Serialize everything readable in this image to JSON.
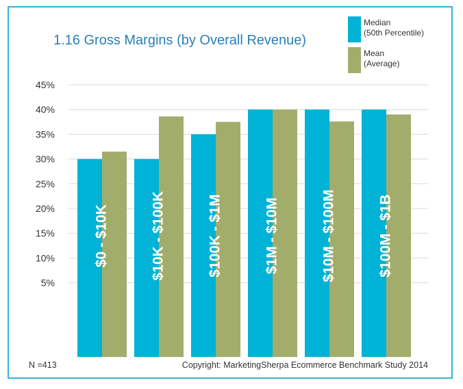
{
  "chart_data": {
    "type": "bar",
    "title": "1.16 Gross Margins (by Overall Revenue)",
    "categories": [
      "$0 - $10K",
      "$10K - $100K",
      "$100K - $1M",
      "$1M - $10M",
      "$10M - $100M",
      "$100M - $1B"
    ],
    "series": [
      {
        "name": "Median (50th Percentile)",
        "legend_lines": [
          "Median",
          "(50th Percentile)"
        ],
        "color": "#00b2d6",
        "values": [
          30,
          30,
          35,
          40,
          40,
          40
        ]
      },
      {
        "name": "Mean (Average)",
        "legend_lines": [
          "Mean",
          "(Average)"
        ],
        "color": "#a2ad6c",
        "values": [
          31.5,
          38.6,
          37.5,
          40,
          37.6,
          39
        ]
      }
    ],
    "y_ticks": [
      "45%",
      "40%",
      "35%",
      "30%",
      "25%",
      "20%",
      "15%",
      "10%",
      "5%"
    ],
    "y_tick_values": [
      45,
      40,
      35,
      30,
      25,
      20,
      15,
      10,
      5
    ],
    "ylim": [
      -10,
      45
    ],
    "xlabel": "",
    "ylabel": "",
    "legend_position": "top-right",
    "grid": true
  },
  "footer": {
    "n_label": "N =413",
    "copyright": "Copyright: MarketingSherpa Ecommerce Benchmark Study 2014"
  },
  "colors": {
    "frame": "#2bb6d6",
    "title": "#2a7fb8"
  }
}
